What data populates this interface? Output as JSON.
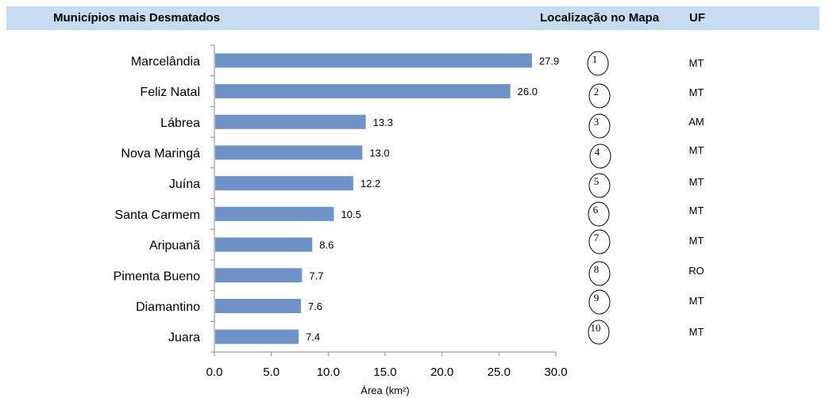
{
  "header": {
    "left_title": "Municípios mais Desmatados",
    "map_title": "Localização no Mapa",
    "uf_title": "UF"
  },
  "chart_data": {
    "type": "bar",
    "orientation": "horizontal",
    "categories": [
      "Marcelândia",
      "Feliz Natal",
      "Lábrea",
      "Nova Maringá",
      "Juína",
      "Santa Carmem",
      "Aripuanã",
      "Pimenta Bueno",
      "Diamantino",
      "Juara"
    ],
    "values": [
      27.9,
      26.0,
      13.3,
      13.0,
      12.2,
      10.5,
      8.6,
      7.7,
      7.6,
      7.4
    ],
    "value_labels": [
      "27.9",
      "26.0",
      "13.3",
      "13.0",
      "12.2",
      "10.5",
      "8.6",
      "7.7",
      "7.6",
      "7.4"
    ],
    "xlabel": "Área (km²)",
    "ylabel": "",
    "xlim": [
      0,
      30
    ],
    "xticks": [
      0,
      5,
      10,
      15,
      20,
      25,
      30
    ],
    "xtick_labels": [
      "0.0",
      "5.0",
      "10.0",
      "15.0",
      "20.0",
      "25.0",
      "30.0"
    ],
    "grid": false,
    "bar_color": "#6f93c6"
  },
  "map_locations": [
    "1",
    "2",
    "3",
    "4",
    "5",
    "6",
    "7",
    "8",
    "9",
    "10"
  ],
  "uf": [
    "MT",
    "MT",
    "AM",
    "MT",
    "MT",
    "MT",
    "MT",
    "RO",
    "MT",
    "MT"
  ]
}
